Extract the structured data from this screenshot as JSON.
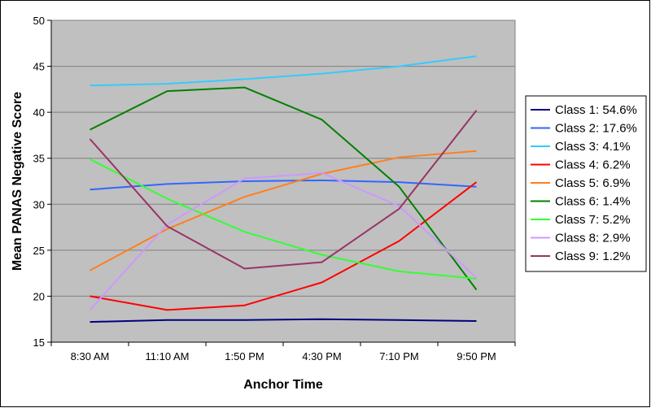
{
  "chart_data": {
    "type": "line",
    "title": "",
    "xlabel": "Anchor Time",
    "ylabel": "Mean PANAS Negative Score",
    "categories": [
      "8:30 AM",
      "11:10 AM",
      "1:50 PM",
      "4:30 PM",
      "7:10 PM",
      "9:50 PM"
    ],
    "ylim": [
      15,
      50
    ],
    "yticks": [
      15,
      20,
      25,
      30,
      35,
      40,
      45,
      50
    ],
    "grid": true,
    "legend_position": "right",
    "series": [
      {
        "name": "Class 1: 54.6%",
        "color": "#000080",
        "values": [
          17.2,
          17.4,
          17.4,
          17.5,
          17.4,
          17.3
        ]
      },
      {
        "name": "Class 2: 17.6%",
        "color": "#3366FF",
        "values": [
          31.6,
          32.2,
          32.5,
          32.6,
          32.4,
          31.9
        ]
      },
      {
        "name": "Class 3: 4.1%",
        "color": "#33CCFF",
        "values": [
          42.9,
          43.1,
          43.6,
          44.2,
          45.0,
          46.1
        ]
      },
      {
        "name": "Class 4: 6.2%",
        "color": "#FF0000",
        "values": [
          20.0,
          18.5,
          19.0,
          21.5,
          26.0,
          32.4
        ]
      },
      {
        "name": "Class 5: 6.9%",
        "color": "#FF7F1F",
        "values": [
          22.8,
          27.3,
          30.8,
          33.3,
          35.1,
          35.8
        ]
      },
      {
        "name": "Class 6: 1.4%",
        "color": "#008000",
        "values": [
          38.1,
          42.3,
          42.7,
          39.2,
          31.9,
          20.7
        ]
      },
      {
        "name": "Class 7: 5.2%",
        "color": "#33FF33",
        "values": [
          34.9,
          30.6,
          27.0,
          24.5,
          22.7,
          21.9
        ]
      },
      {
        "name": "Class 8: 2.9%",
        "color": "#CC99FF",
        "values": [
          18.5,
          27.8,
          32.8,
          33.4,
          29.8,
          22.0
        ]
      },
      {
        "name": "Class 9: 1.2%",
        "color": "#993366",
        "values": [
          37.1,
          27.6,
          23.0,
          23.7,
          29.5,
          40.2
        ]
      }
    ]
  }
}
